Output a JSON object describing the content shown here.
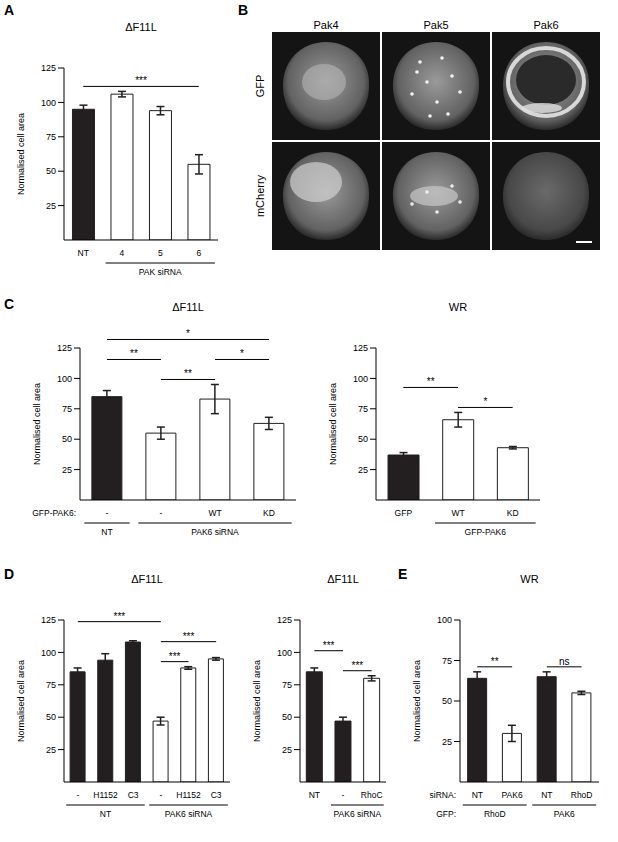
{
  "chart_data": [
    {
      "letter": "A",
      "type": "bar",
      "title": "ΔF11L",
      "ylabel": "Normalised cell area",
      "categories": [
        "NT",
        "4",
        "5",
        "6"
      ],
      "values": [
        95,
        106,
        94,
        55
      ],
      "errors": [
        3,
        2,
        3,
        7
      ],
      "colors": [
        "#231f20",
        "#ffffff",
        "#ffffff",
        "#ffffff"
      ],
      "ylim": [
        0,
        125
      ],
      "yticks": [
        25,
        50,
        75,
        100,
        125
      ],
      "groups": [
        {
          "label": "PAK siRNA",
          "from": 1,
          "to": 3
        }
      ],
      "annotations": [
        {
          "label": "***",
          "from": 0,
          "to": 3
        }
      ]
    },
    {
      "letter": "C",
      "type": "bar",
      "title": "ΔF11L",
      "ylabel": "Normalised cell area",
      "category_label": "GFP-PAK6:",
      "categories": [
        "-",
        "-",
        "WT",
        "KD"
      ],
      "values": [
        85,
        55,
        83,
        63
      ],
      "errors": [
        5,
        5,
        12,
        5
      ],
      "colors": [
        "#231f20",
        "#ffffff",
        "#ffffff",
        "#ffffff"
      ],
      "ylim": [
        0,
        125
      ],
      "yticks": [
        25,
        50,
        75,
        100,
        125
      ],
      "groups": [
        {
          "label": "NT",
          "from": 0,
          "to": 0
        },
        {
          "label": "PAK6 siRNA",
          "from": 1,
          "to": 3
        }
      ],
      "annotations": [
        {
          "label": "**",
          "from": 1,
          "to": 2
        },
        {
          "label": "*",
          "from": 2,
          "to": 3
        },
        {
          "label": "**",
          "from": 0,
          "to": 1
        },
        {
          "label": "*",
          "from": 0,
          "to": 3
        }
      ]
    },
    {
      "type": "bar",
      "title": "WR",
      "ylabel": "Normalised cell area",
      "categories": [
        "GFP",
        "WT",
        "KD"
      ],
      "values": [
        37,
        66,
        43
      ],
      "errors": [
        2,
        6,
        1
      ],
      "colors": [
        "#231f20",
        "#ffffff",
        "#ffffff"
      ],
      "ylim": [
        0,
        125
      ],
      "yticks": [
        25,
        50,
        75,
        100,
        125
      ],
      "groups": [
        {
          "label": "GFP-PAK6",
          "from": 1,
          "to": 2
        }
      ],
      "annotations": [
        {
          "label": "*",
          "from": 1,
          "to": 2
        },
        {
          "label": "**",
          "from": 0,
          "to": 1
        }
      ]
    },
    {
      "letter": "D",
      "type": "bar",
      "title": "ΔF11L",
      "ylabel": "Normalised cell area",
      "categories": [
        "-",
        "H1152",
        "C3",
        "-",
        "H1152",
        "C3"
      ],
      "values": [
        85,
        94,
        108,
        47,
        88,
        95
      ],
      "errors": [
        3,
        5,
        1,
        3,
        1,
        1
      ],
      "colors": [
        "#231f20",
        "#231f20",
        "#231f20",
        "#ffffff",
        "#ffffff",
        "#ffffff"
      ],
      "ylim": [
        0,
        125
      ],
      "yticks": [
        25,
        50,
        75,
        100,
        125
      ],
      "groups": [
        {
          "label": "NT",
          "from": 0,
          "to": 2
        },
        {
          "label": "PAK6 siRNA",
          "from": 3,
          "to": 5
        }
      ],
      "annotations": [
        {
          "label": "***",
          "from": 3,
          "to": 4
        },
        {
          "label": "***",
          "from": 3,
          "to": 5
        },
        {
          "label": "***",
          "from": 0,
          "to": 3
        }
      ]
    },
    {
      "type": "bar",
      "title": "ΔF11L",
      "ylabel": "Normalised cell area",
      "categories": [
        "NT",
        "-",
        "RhoC"
      ],
      "values": [
        85,
        47,
        80
      ],
      "errors": [
        3,
        3,
        2
      ],
      "colors": [
        "#231f20",
        "#231f20",
        "#ffffff"
      ],
      "ylim": [
        0,
        125
      ],
      "yticks": [
        25,
        50,
        75,
        100,
        125
      ],
      "groups": [
        {
          "label": "PAK6 siRNA",
          "from": 1,
          "to": 2
        }
      ],
      "annotations": [
        {
          "label": "***",
          "from": 1,
          "to": 2
        },
        {
          "label": "***",
          "from": 0,
          "to": 1
        }
      ]
    },
    {
      "letter": "E",
      "type": "bar",
      "title": "WR",
      "ylabel": "Normalised cell area",
      "category_label": "siRNA:",
      "group_label": "GFP:",
      "categories": [
        "NT",
        "PAK6",
        "NT",
        "RhoD"
      ],
      "values": [
        64,
        30,
        65,
        55
      ],
      "errors": [
        4,
        5,
        3,
        1
      ],
      "colors": [
        "#231f20",
        "#ffffff",
        "#231f20",
        "#ffffff"
      ],
      "ylim": [
        0,
        100
      ],
      "yticks": [
        25,
        50,
        75,
        100
      ],
      "groups": [
        {
          "label": "RhoD",
          "from": 0,
          "to": 1
        },
        {
          "label": "PAK6",
          "from": 2,
          "to": 3
        }
      ],
      "annotations": [
        {
          "label": "**",
          "from": 0,
          "to": 1
        },
        {
          "label": "ns",
          "from": 2,
          "to": 3
        }
      ]
    }
  ],
  "image_panel": {
    "letter": "B",
    "columns": [
      "Pak4",
      "Pak5",
      "Pak6"
    ],
    "rows": [
      "GFP",
      "mCherry"
    ]
  }
}
